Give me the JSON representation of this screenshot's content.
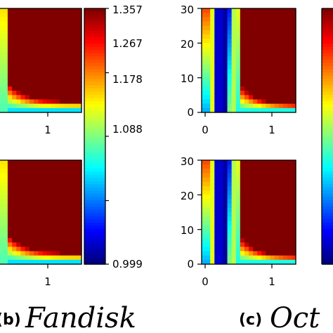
{
  "chart_data": {
    "type": "heatmap",
    "colormap": "jet",
    "colorbar": {
      "ticks": [
        "1.357",
        "1.267",
        "1.178",
        "1.088",
        "0.999"
      ],
      "values": [
        1.357,
        1.267,
        1.178,
        1.088,
        0.999
      ],
      "range": [
        0.999,
        1.357
      ]
    },
    "panels": [
      {
        "caption_letter": "(b)",
        "caption_name": "Fandisk",
        "plots": [
          {
            "row": "top",
            "x_ticks": [
              "1"
            ],
            "x_tick_values": [
              1
            ],
            "y_ticks": [],
            "pattern": "fandisk"
          },
          {
            "row": "bottom",
            "x_ticks": [
              "1"
            ],
            "x_tick_values": [
              1
            ],
            "y_ticks": [],
            "pattern": "fandisk"
          }
        ]
      },
      {
        "caption_letter": "(c)",
        "caption_name": "Oct",
        "plots": [
          {
            "row": "top",
            "x_ticks": [
              "0",
              "1"
            ],
            "x_tick_values": [
              0,
              1
            ],
            "y_ticks": [
              "30",
              "20",
              "10",
              "0"
            ],
            "y_tick_values": [
              30,
              20,
              10,
              0
            ],
            "pattern": "oct"
          },
          {
            "row": "bottom",
            "x_ticks": [
              "0",
              "1"
            ],
            "x_tick_values": [
              0,
              1
            ],
            "y_ticks": [
              "30",
              "20",
              "10",
              "0"
            ],
            "y_tick_values": [
              30,
              20,
              10,
              0
            ],
            "pattern": "oct"
          }
        ]
      }
    ]
  }
}
